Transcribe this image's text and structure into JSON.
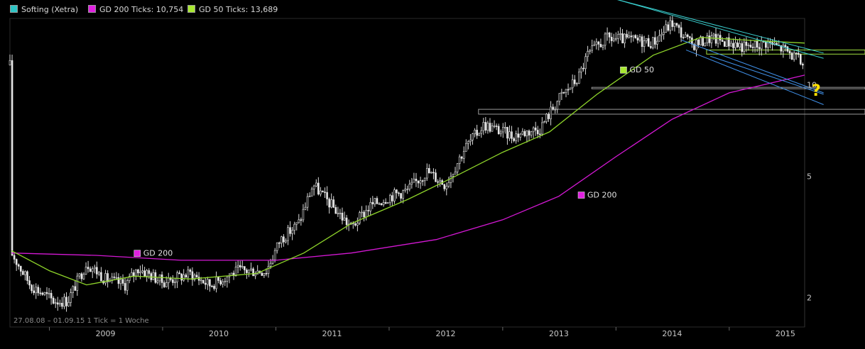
{
  "legend": [
    {
      "label": "Softing (Xetra)",
      "color": "#2ec4c4"
    },
    {
      "label": "GD 200 Ticks: 10,754",
      "color": "#e020e0"
    },
    {
      "label": "GD 50 Ticks: 13,689",
      "color": "#a8e830"
    }
  ],
  "info_text": "27.08.08 – 01.09.15   1 Tick = 1 Woche",
  "question_mark": "?",
  "chart_data": {
    "type": "candlestick",
    "title": "Softing (Xetra)",
    "x_range": [
      "2008-08-27",
      "2015-09-01"
    ],
    "x_ticks": [
      "2009",
      "2010",
      "2011",
      "2012",
      "2013",
      "2014",
      "2015"
    ],
    "y_scale": "log",
    "y_ticks": [
      "2",
      "5",
      "10"
    ],
    "y_tick_values": [
      2,
      5,
      10
    ],
    "y_range": [
      1.6,
      16.5
    ],
    "grid": false,
    "legend_position": "top-left",
    "price_trend": [
      [
        "2008-09-01",
        2.8
      ],
      [
        "2008-11-01",
        2.2
      ],
      [
        "2009-01-15",
        1.95
      ],
      [
        "2009-03-01",
        1.95
      ],
      [
        "2009-05-01",
        2.6
      ],
      [
        "2009-07-01",
        2.3
      ],
      [
        "2009-09-01",
        2.2
      ],
      [
        "2009-10-15",
        2.5
      ],
      [
        "2010-01-01",
        2.25
      ],
      [
        "2010-04-01",
        2.4
      ],
      [
        "2010-06-01",
        2.2
      ],
      [
        "2010-09-01",
        2.45
      ],
      [
        "2010-12-01",
        2.45
      ],
      [
        "2011-01-15",
        3.1
      ],
      [
        "2011-03-15",
        3.5
      ],
      [
        "2011-05-01",
        4.7
      ],
      [
        "2011-07-01",
        4.0
      ],
      [
        "2011-09-01",
        3.4
      ],
      [
        "2011-11-01",
        4.0
      ],
      [
        "2012-01-01",
        4.3
      ],
      [
        "2012-03-01",
        4.5
      ],
      [
        "2012-05-01",
        5.2
      ],
      [
        "2012-07-01",
        4.7
      ],
      [
        "2012-09-01",
        6.2
      ],
      [
        "2012-11-01",
        7.4
      ],
      [
        "2013-02-01",
        6.8
      ],
      [
        "2013-05-01",
        7.2
      ],
      [
        "2013-07-01",
        9.0
      ],
      [
        "2013-09-01",
        10.5
      ],
      [
        "2013-10-01",
        12.5
      ],
      [
        "2013-12-01",
        14.2
      ],
      [
        "2014-03-01",
        14.0
      ],
      [
        "2014-05-01",
        13.8
      ],
      [
        "2014-07-01",
        16.0
      ],
      [
        "2014-09-01",
        13.5
      ],
      [
        "2014-11-01",
        14.2
      ],
      [
        "2015-01-01",
        13.8
      ],
      [
        "2015-03-01",
        13.2
      ],
      [
        "2015-05-01",
        13.8
      ],
      [
        "2015-07-01",
        13.0
      ],
      [
        "2015-09-01",
        11.6
      ]
    ],
    "moving_averages": [
      {
        "label": "GD 200",
        "color": "#d418d4",
        "points": [
          [
            "2008-09-01",
            2.8
          ],
          [
            "2009-06-01",
            2.75
          ],
          [
            "2010-03-01",
            2.65
          ],
          [
            "2011-01-01",
            2.65
          ],
          [
            "2011-09-01",
            2.8
          ],
          [
            "2012-06-01",
            3.1
          ],
          [
            "2013-01-01",
            3.6
          ],
          [
            "2013-07-01",
            4.3
          ],
          [
            "2014-01-01",
            5.8
          ],
          [
            "2014-07-01",
            7.7
          ],
          [
            "2015-01-01",
            9.4
          ],
          [
            "2015-09-01",
            10.75
          ]
        ]
      },
      {
        "label": "GD 50",
        "color": "#8ed42a",
        "points": [
          [
            "2008-09-01",
            2.85
          ],
          [
            "2009-01-01",
            2.45
          ],
          [
            "2009-05-01",
            2.2
          ],
          [
            "2009-10-01",
            2.35
          ],
          [
            "2010-04-01",
            2.3
          ],
          [
            "2010-11-01",
            2.4
          ],
          [
            "2011-04-01",
            2.8
          ],
          [
            "2011-09-01",
            3.5
          ],
          [
            "2012-03-01",
            4.2
          ],
          [
            "2012-08-01",
            5.0
          ],
          [
            "2013-01-01",
            6.0
          ],
          [
            "2013-06-01",
            7.0
          ],
          [
            "2013-11-01",
            9.3
          ],
          [
            "2014-05-01",
            12.5
          ],
          [
            "2014-10-01",
            14.3
          ],
          [
            "2015-03-01",
            14.0
          ],
          [
            "2015-09-01",
            13.7
          ]
        ]
      }
    ],
    "annotations": [
      {
        "text": "GD 200",
        "color": "#e020e0",
        "date": "2009-10-01",
        "value": 2.8
      },
      {
        "text": "GD 200",
        "color": "#e020e0",
        "date": "2013-09-01",
        "value": 4.35
      },
      {
        "text": "GD 50",
        "color": "#a8e830",
        "date": "2014-01-15",
        "value": 11.2
      }
    ],
    "trendlines": [
      {
        "color": "#3ad0d0",
        "from": [
          "2013-09-15",
          20.5
        ],
        "to": [
          "2015-11-01",
          12.2
        ]
      },
      {
        "color": "#3ad0d0",
        "from": [
          "2013-10-15",
          20.0
        ],
        "to": [
          "2015-11-01",
          12.7
        ]
      },
      {
        "color": "#4090e8",
        "from": [
          "2014-08-15",
          13.0
        ],
        "to": [
          "2015-11-01",
          8.6
        ]
      },
      {
        "color": "#4090e8",
        "from": [
          "2014-08-01",
          14.0
        ],
        "to": [
          "2015-11-01",
          9.4
        ]
      },
      {
        "color": "#4090e8",
        "from": [
          "2014-11-01",
          12.4
        ],
        "to": [
          "2015-11-01",
          9.3
        ]
      }
    ],
    "horizontal_zones": [
      {
        "color": "#a0e040",
        "from_date": "2014-10-20",
        "low": 12.6,
        "high": 13.0
      },
      {
        "color": "#9a9a9a",
        "from_date": "2013-10-15",
        "low": 9.7,
        "high": 9.8
      },
      {
        "color": "#9a9a9a",
        "from_date": "2012-10-15",
        "low": 8.0,
        "high": 8.3
      }
    ]
  }
}
